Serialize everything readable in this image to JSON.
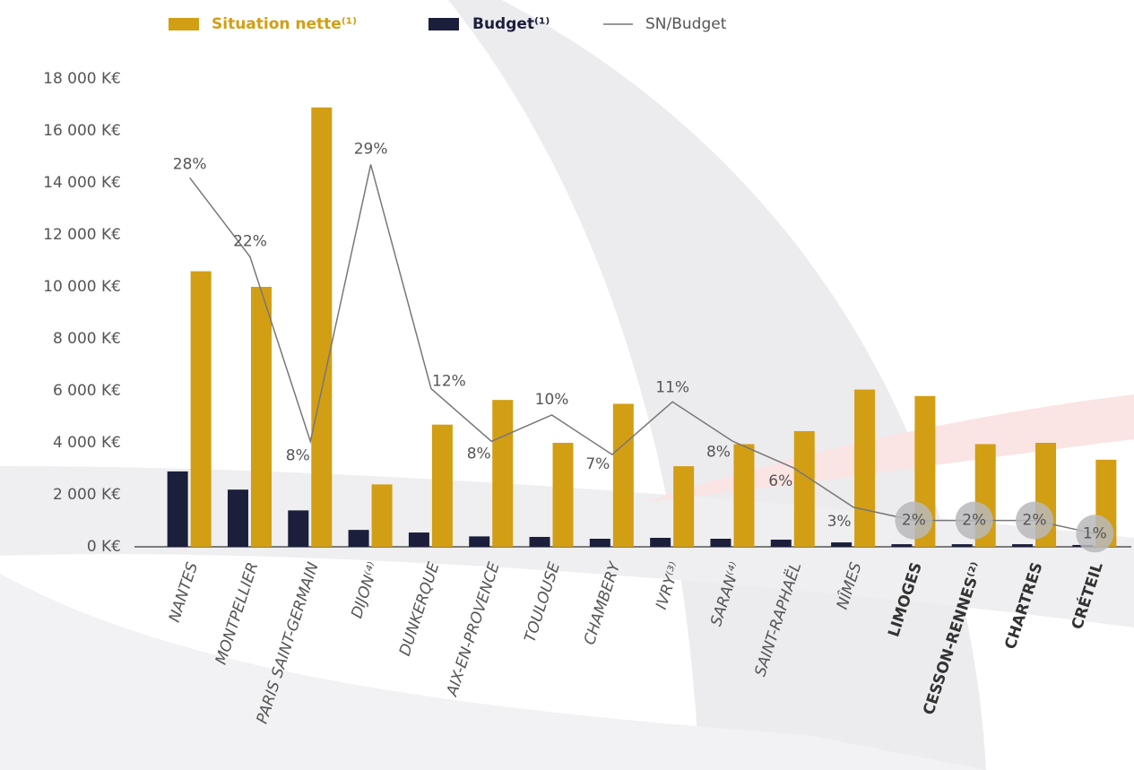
{
  "chart_data": {
    "type": "bar-line",
    "categories": [
      "NANTES",
      "MONTPELLIER",
      "PARIS SAINT-GERMAIN",
      "DIJON⁽⁴⁾",
      "DUNKERQUE",
      "AIX-EN-PROVENCE",
      "TOULOUSE",
      "CHAMBERY",
      "IVRY⁽³⁾",
      "SARAN⁽⁴⁾",
      "SAINT-RAPHAËL",
      "NÎMES",
      "LIMOGES",
      "CESSON-RENNES⁽²⁾",
      "CHARTRES",
      "CRÉTEIL"
    ],
    "series": [
      {
        "name": "Situation nette⁽¹⁾",
        "color": "#d29e14",
        "values": [
          10600,
          10000,
          16900,
          2400,
          4700,
          5650,
          4000,
          5500,
          3100,
          3950,
          4450,
          6050,
          5800,
          3950,
          4000,
          3350
        ]
      },
      {
        "name": "Budget⁽¹⁾",
        "color": "#1b1f3b",
        "values": [
          2900,
          2200,
          1400,
          650,
          550,
          400,
          380,
          310,
          345,
          310,
          275,
          170,
          100,
          100,
          100,
          70
        ]
      },
      {
        "name": "SN/Budget",
        "color": "#777777",
        "axis": "y2",
        "values": [
          28,
          22,
          8,
          29,
          12,
          8,
          10,
          7,
          11,
          8,
          6,
          3,
          2,
          2,
          2,
          1
        ],
        "value_labels": [
          "28%",
          "22%",
          "8%",
          "29%",
          "12%",
          "8%",
          "10%",
          "7%",
          "11%",
          "8%",
          "6%",
          "3%",
          "2%",
          "2%",
          "2%",
          "1%"
        ]
      }
    ],
    "ylim": [
      0,
      18000
    ],
    "yticks": [
      {
        "value": 0,
        "label": "0 K€"
      },
      {
        "value": 2000,
        "label": "2 000 K€"
      },
      {
        "value": 4000,
        "label": "4 000 K€"
      },
      {
        "value": 6000,
        "label": "6 000 K€"
      },
      {
        "value": 8000,
        "label": "8 000 K€"
      },
      {
        "value": 10000,
        "label": "10 000 K€"
      },
      {
        "value": 12000,
        "label": "12 000 K€"
      },
      {
        "value": 14000,
        "label": "14 000 K€"
      },
      {
        "value": 16000,
        "label": "16 000 K€"
      },
      {
        "value": 18000,
        "label": "18 000 K€"
      }
    ],
    "y2lim": [
      0,
      35.5
    ]
  }
}
